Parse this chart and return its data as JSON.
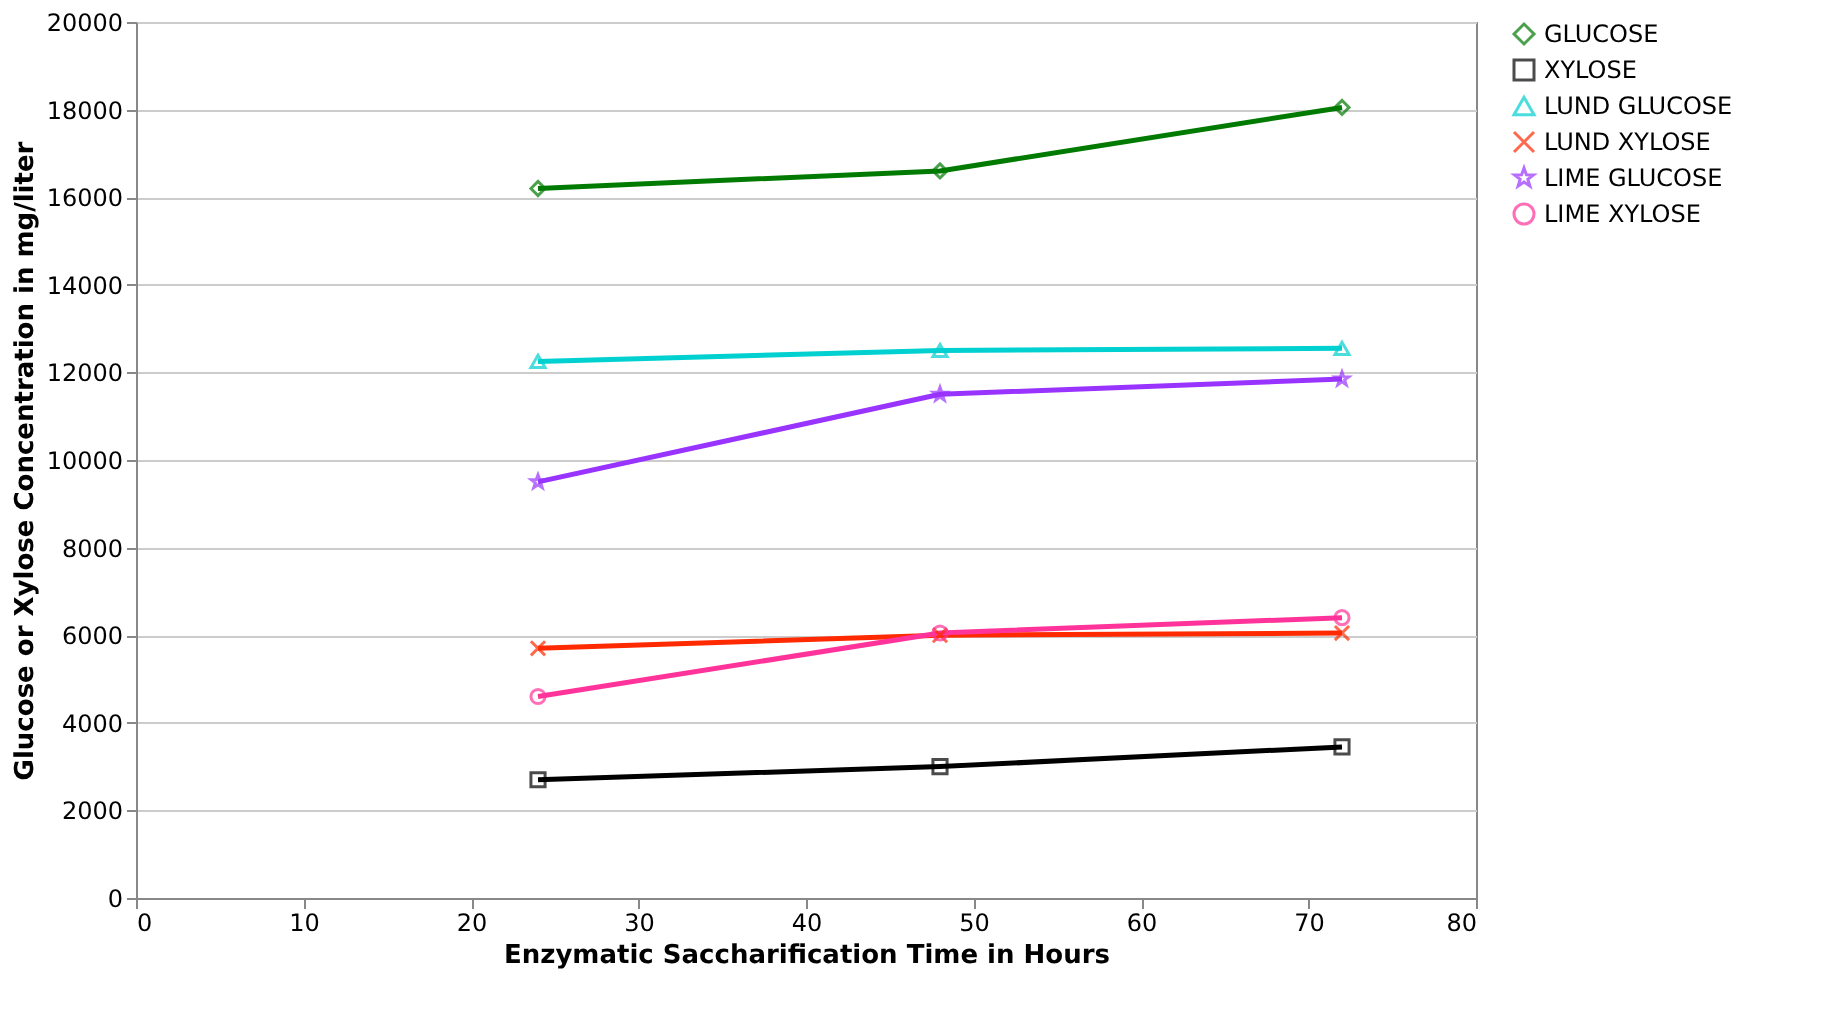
{
  "chart_data": {
    "type": "line",
    "xlabel": "Enzymatic Saccharification Time in Hours",
    "ylabel": "Glucose or Xylose Concentration in mg/liter",
    "x": [
      24,
      48,
      72
    ],
    "xlim": [
      0,
      80
    ],
    "xticks": [
      0,
      10,
      20,
      30,
      40,
      50,
      60,
      70,
      80
    ],
    "ylim": [
      0,
      20000
    ],
    "yticks": [
      0,
      2000,
      4000,
      6000,
      8000,
      10000,
      12000,
      14000,
      16000,
      18000,
      20000
    ],
    "grid": "y",
    "legend": "right",
    "line_style": "solid",
    "series": [
      {
        "name": "GLUCOSE",
        "color": "#007a00",
        "marker": "diamond",
        "values": [
          16200,
          16600,
          18050
        ]
      },
      {
        "name": "XYLOSE",
        "color": "#000000",
        "marker": "square",
        "values": [
          2700,
          3000,
          3450
        ]
      },
      {
        "name": "LUND GLUCOSE",
        "color": "#00d0d0",
        "marker": "triangle",
        "values": [
          12250,
          12500,
          12550
        ]
      },
      {
        "name": "LUND XYLOSE",
        "color": "#ff2a00",
        "marker": "cross",
        "values": [
          5700,
          6000,
          6050
        ]
      },
      {
        "name": "LIME GLUCOSE",
        "color": "#9933ff",
        "marker": "star",
        "values": [
          9500,
          11500,
          11850
        ]
      },
      {
        "name": "LIME XYLOSE",
        "color": "#ff3399",
        "marker": "circle",
        "values": [
          4600,
          6050,
          6400
        ]
      }
    ]
  }
}
